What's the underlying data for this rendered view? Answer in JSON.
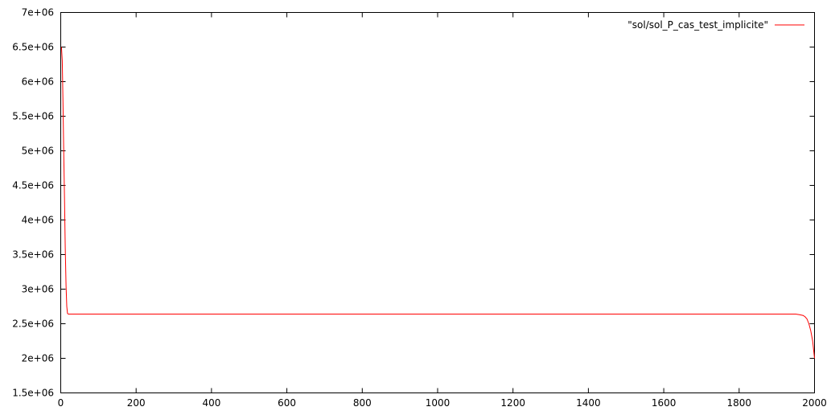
{
  "chart_data": {
    "type": "line",
    "title": "",
    "xlabel": "",
    "ylabel": "",
    "xlim": [
      0,
      2000
    ],
    "ylim": [
      1500000,
      7000000
    ],
    "x_ticks": [
      0,
      200,
      400,
      600,
      800,
      1000,
      1200,
      1400,
      1600,
      1800,
      2000
    ],
    "x_tick_labels": [
      "0",
      "200",
      "400",
      "600",
      "800",
      "1000",
      "1200",
      "1400",
      "1600",
      "1800",
      "2000"
    ],
    "y_ticks": [
      1500000,
      2000000,
      2500000,
      3000000,
      3500000,
      4000000,
      4500000,
      5000000,
      5500000,
      6000000,
      6500000,
      7000000
    ],
    "y_tick_labels": [
      "1.5e+06",
      "2e+06",
      "2.5e+06",
      "3e+06",
      "3.5e+06",
      "4e+06",
      "4.5e+06",
      "5e+06",
      "5.5e+06",
      "6e+06",
      "6.5e+06",
      "7e+06"
    ],
    "grid": false,
    "legend_position": "top-right",
    "series": [
      {
        "name": "\"sol/sol_P_cas_test_implicite\"",
        "color": "#ff0000",
        "x": [
          2,
          4,
          6,
          8,
          10,
          12,
          14,
          16,
          18,
          20,
          1940,
          1950,
          1960,
          1970,
          1975,
          1980,
          1985,
          1990,
          1995,
          2000
        ],
        "y": [
          6500000,
          6300000,
          5700000,
          5000000,
          4300000,
          3600000,
          3050000,
          2750000,
          2650000,
          2640000,
          2640000,
          2640000,
          2630000,
          2620000,
          2600000,
          2570000,
          2500000,
          2400000,
          2250000,
          2000000
        ]
      }
    ]
  }
}
